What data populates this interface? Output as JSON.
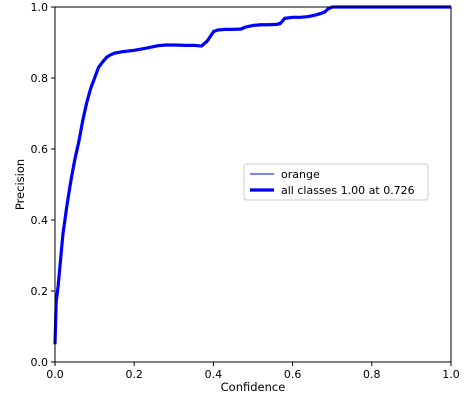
{
  "chart_data": {
    "type": "line",
    "title": "",
    "xlabel": "Confidence",
    "ylabel": "Precision",
    "xlim": [
      0,
      1
    ],
    "ylim": [
      0,
      1
    ],
    "x_ticks": [
      "0.0",
      "0.2",
      "0.4",
      "0.6",
      "0.8",
      "1.0"
    ],
    "y_ticks": [
      "0.0",
      "0.2",
      "0.4",
      "0.6",
      "0.8",
      "1.0"
    ],
    "grid": false,
    "legend_position": "center-right",
    "series": [
      {
        "name": "orange",
        "color": "#0000ff",
        "style": "thin",
        "x": [
          0.0,
          0.003,
          0.008,
          0.015,
          0.02,
          0.025,
          0.03,
          0.04,
          0.05,
          0.06,
          0.07,
          0.08,
          0.09,
          0.1,
          0.11,
          0.12,
          0.13,
          0.14,
          0.15,
          0.17,
          0.2,
          0.23,
          0.26,
          0.28,
          0.3,
          0.33,
          0.35,
          0.37,
          0.385,
          0.4,
          0.41,
          0.43,
          0.45,
          0.47,
          0.48,
          0.5,
          0.52,
          0.54,
          0.56,
          0.57,
          0.58,
          0.6,
          0.62,
          0.64,
          0.66,
          0.68,
          0.69,
          0.7,
          0.72,
          0.75,
          0.8,
          0.85,
          0.9,
          0.95,
          1.0
        ],
        "y": [
          0.05,
          0.17,
          0.22,
          0.3,
          0.38,
          0.4,
          0.45,
          0.51,
          0.57,
          0.62,
          0.68,
          0.73,
          0.78,
          0.8,
          0.83,
          0.845,
          0.86,
          0.865,
          0.87,
          0.874,
          0.878,
          0.884,
          0.892,
          0.894,
          0.893,
          0.891,
          0.892,
          0.888,
          0.9,
          0.935,
          0.934,
          0.938,
          0.936,
          0.935,
          0.944,
          0.95,
          0.951,
          0.948,
          0.948,
          0.95,
          0.971,
          0.972,
          0.969,
          0.972,
          0.978,
          0.984,
          0.997,
          1.0,
          1.0,
          1.0,
          1.0,
          1.0,
          1.0,
          1.0,
          1.0
        ]
      },
      {
        "name": "all classes 1.00 at 0.726",
        "color": "#0000ff",
        "style": "thick",
        "x": [
          0.0,
          0.003,
          0.008,
          0.015,
          0.02,
          0.025,
          0.03,
          0.04,
          0.05,
          0.06,
          0.07,
          0.08,
          0.09,
          0.1,
          0.11,
          0.12,
          0.13,
          0.14,
          0.15,
          0.17,
          0.2,
          0.23,
          0.26,
          0.28,
          0.3,
          0.33,
          0.35,
          0.37,
          0.385,
          0.4,
          0.41,
          0.43,
          0.45,
          0.47,
          0.48,
          0.5,
          0.52,
          0.54,
          0.56,
          0.57,
          0.58,
          0.6,
          0.62,
          0.64,
          0.66,
          0.68,
          0.69,
          0.7,
          0.72,
          0.75,
          0.8,
          0.85,
          0.9,
          0.95,
          1.0
        ],
        "y": [
          0.05,
          0.17,
          0.215,
          0.3,
          0.36,
          0.4,
          0.44,
          0.51,
          0.57,
          0.62,
          0.68,
          0.73,
          0.77,
          0.8,
          0.83,
          0.845,
          0.858,
          0.865,
          0.87,
          0.874,
          0.878,
          0.884,
          0.891,
          0.893,
          0.893,
          0.892,
          0.892,
          0.89,
          0.905,
          0.93,
          0.935,
          0.937,
          0.937,
          0.938,
          0.943,
          0.948,
          0.95,
          0.95,
          0.951,
          0.955,
          0.968,
          0.971,
          0.971,
          0.973,
          0.978,
          0.985,
          0.995,
          1.0,
          1.0,
          1.0,
          1.0,
          1.0,
          1.0,
          1.0,
          1.0
        ]
      }
    ]
  }
}
